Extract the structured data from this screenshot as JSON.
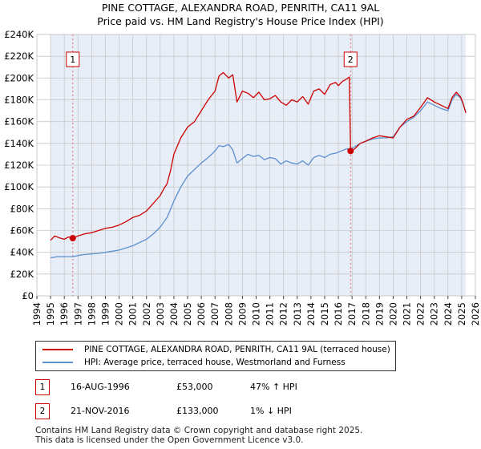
{
  "chart_data": {
    "type": "line",
    "title": "PINE COTTAGE, ALEXANDRA ROAD, PENRITH, CA11 9AL",
    "subtitle": "Price paid vs. HM Land Registry's House Price Index (HPI)",
    "xlabel": "",
    "ylabel": "",
    "xlim": [
      1994,
      2026
    ],
    "ylim": [
      0,
      240000
    ],
    "y_ticks": [
      0,
      20000,
      40000,
      60000,
      80000,
      100000,
      120000,
      140000,
      160000,
      180000,
      200000,
      220000,
      240000
    ],
    "y_tick_labels": [
      "£0",
      "£20K",
      "£40K",
      "£60K",
      "£80K",
      "£100K",
      "£120K",
      "£140K",
      "£160K",
      "£180K",
      "£200K",
      "£220K",
      "£240K"
    ],
    "x_ticks": [
      1994,
      1995,
      1996,
      1997,
      1998,
      1999,
      2000,
      2001,
      2002,
      2003,
      2004,
      2005,
      2006,
      2007,
      2008,
      2009,
      2010,
      2011,
      2012,
      2013,
      2014,
      2015,
      2016,
      2017,
      2018,
      2019,
      2020,
      2021,
      2022,
      2023,
      2024,
      2025,
      2026
    ],
    "x_tick_labels": [
      "1994",
      "1995",
      "1996",
      "1997",
      "1998",
      "1999",
      "2000",
      "2001",
      "2002",
      "2003",
      "2004",
      "2005",
      "2006",
      "2007",
      "2008",
      "2009",
      "2010",
      "2011",
      "2012",
      "2013",
      "2014",
      "2015",
      "2016",
      "2017",
      "2018",
      "2019",
      "2020",
      "2021",
      "2022",
      "2023",
      "2024",
      "2025",
      "2026"
    ],
    "grid": true,
    "data_range": [
      1995.0,
      2025.3
    ],
    "series": [
      {
        "name": "PINE COTTAGE, ALEXANDRA ROAD, PENRITH, CA11 9AL (terraced house)",
        "color": "#cc0000",
        "x": [
          1995.0,
          1995.3,
          1995.7,
          1996.0,
          1996.3,
          1996.62,
          1997.0,
          1997.5,
          1998.0,
          1998.5,
          1999.0,
          1999.5,
          2000.0,
          2000.5,
          2001.0,
          2001.5,
          2002.0,
          2002.5,
          2003.0,
          2003.25,
          2003.5,
          2003.75,
          2004.0,
          2004.5,
          2005.0,
          2005.5,
          2006.0,
          2006.5,
          2007.0,
          2007.3,
          2007.6,
          2008.0,
          2008.3,
          2008.6,
          2009.0,
          2009.4,
          2009.8,
          2010.2,
          2010.6,
          2011.0,
          2011.4,
          2011.8,
          2012.2,
          2012.6,
          2013.0,
          2013.4,
          2013.8,
          2014.2,
          2014.6,
          2015.0,
          2015.4,
          2015.8,
          2016.0,
          2016.3,
          2016.6,
          2016.8,
          2016.89,
          2017.2,
          2017.6,
          2018.0,
          2018.5,
          2019.0,
          2019.5,
          2020.0,
          2020.5,
          2021.0,
          2021.5,
          2022.0,
          2022.5,
          2023.0,
          2023.5,
          2024.0,
          2024.3,
          2024.6,
          2024.9,
          2025.1,
          2025.3
        ],
        "values": [
          51000,
          55000,
          53000,
          52000,
          54000,
          53000,
          55000,
          57000,
          58000,
          60000,
          62000,
          63000,
          65000,
          68000,
          72000,
          74000,
          78000,
          85000,
          92000,
          98000,
          103000,
          115000,
          130000,
          145000,
          155000,
          160000,
          170000,
          180000,
          188000,
          202000,
          205000,
          200000,
          203000,
          178000,
          188000,
          186000,
          182000,
          187000,
          180000,
          181000,
          184000,
          178000,
          175000,
          180000,
          178000,
          183000,
          176000,
          188000,
          190000,
          185000,
          194000,
          196000,
          193000,
          197000,
          199000,
          201000,
          133000,
          135000,
          140000,
          142000,
          145000,
          147000,
          146000,
          145000,
          155000,
          162000,
          165000,
          173000,
          182000,
          178000,
          175000,
          172000,
          182000,
          187000,
          183000,
          177000,
          168000
        ]
      },
      {
        "name": "HPI: Average price, terraced house, Westmorland and Furness",
        "color": "#5b8fcf",
        "x": [
          1995.0,
          1995.5,
          1996.0,
          1996.62,
          1997.0,
          1997.5,
          1998.0,
          1998.5,
          1999.0,
          1999.5,
          2000.0,
          2000.5,
          2001.0,
          2001.5,
          2002.0,
          2002.5,
          2003.0,
          2003.5,
          2004.0,
          2004.5,
          2005.0,
          2005.5,
          2006.0,
          2006.5,
          2007.0,
          2007.3,
          2007.6,
          2008.0,
          2008.3,
          2008.6,
          2009.0,
          2009.4,
          2009.8,
          2010.2,
          2010.6,
          2011.0,
          2011.4,
          2011.8,
          2012.2,
          2012.6,
          2013.0,
          2013.4,
          2013.8,
          2014.2,
          2014.6,
          2015.0,
          2015.4,
          2015.8,
          2016.2,
          2016.6,
          2016.89,
          2017.2,
          2017.6,
          2018.0,
          2018.5,
          2019.0,
          2019.5,
          2020.0,
          2020.5,
          2021.0,
          2021.5,
          2022.0,
          2022.5,
          2023.0,
          2023.5,
          2024.0,
          2024.3,
          2024.6,
          2024.9,
          2025.1,
          2025.3
        ],
        "values": [
          35000,
          36000,
          36000,
          36000,
          37000,
          38000,
          38500,
          39000,
          40000,
          41000,
          42000,
          44000,
          46000,
          49000,
          52000,
          57000,
          63000,
          72000,
          87000,
          100000,
          110000,
          116000,
          122000,
          127000,
          133000,
          138000,
          137000,
          139000,
          134000,
          122000,
          126000,
          130000,
          128000,
          129000,
          125000,
          127000,
          126000,
          121000,
          124000,
          122000,
          121000,
          124000,
          120000,
          127000,
          129000,
          127000,
          130000,
          131000,
          133000,
          135000,
          135000,
          137000,
          140000,
          142000,
          144000,
          145000,
          145000,
          146000,
          155000,
          160000,
          164000,
          170000,
          178000,
          175000,
          172000,
          170000,
          180000,
          185000,
          182000,
          176000,
          169000
        ]
      }
    ],
    "sales": [
      {
        "label": "1",
        "x": 1996.62,
        "value": 53000
      },
      {
        "label": "2",
        "x": 2016.89,
        "value": 133000
      }
    ]
  },
  "legend": {
    "series1_label": "PINE COTTAGE, ALEXANDRA ROAD, PENRITH, CA11 9AL (terraced house)",
    "series2_label": "HPI: Average price, terraced house, Westmorland and Furness"
  },
  "annotations": [
    {
      "num": "1",
      "date": "16-AUG-1996",
      "price": "£53,000",
      "hpi": "47% ↑ HPI"
    },
    {
      "num": "2",
      "date": "21-NOV-2016",
      "price": "£133,000",
      "hpi": "1% ↓ HPI"
    }
  ],
  "footer": {
    "line1": "Contains HM Land Registry data © Crown copyright and database right 2025.",
    "line2": "This data is licensed under the Open Government Licence v3.0."
  }
}
